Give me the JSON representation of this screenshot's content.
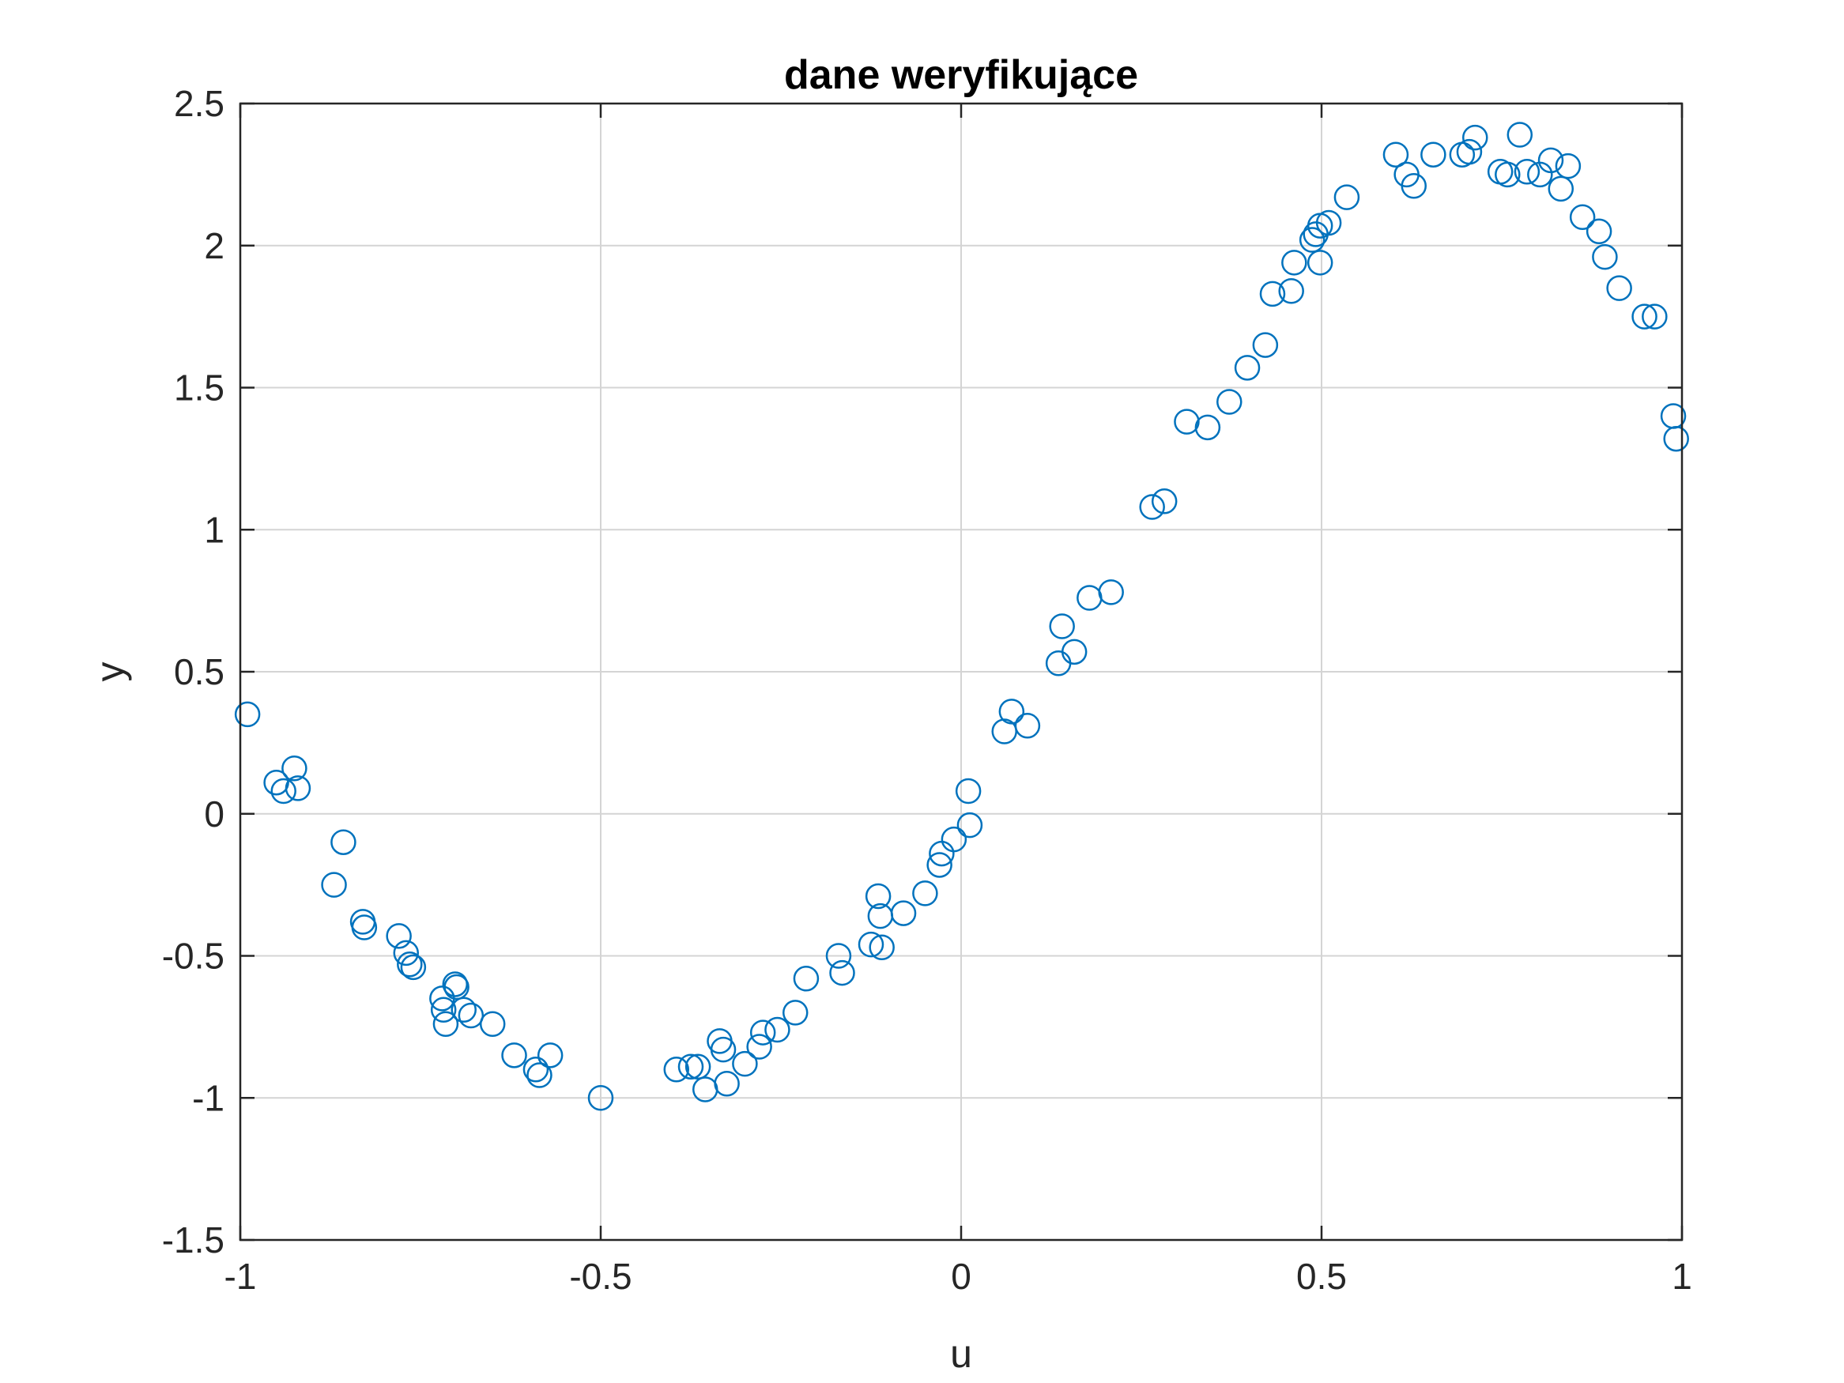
{
  "chart_data": {
    "type": "scatter",
    "title": "dane weryfikujące",
    "xlabel": "u",
    "ylabel": "y",
    "xlim": [
      -1,
      1
    ],
    "ylim": [
      -1.5,
      2.5
    ],
    "xticks": [
      -1,
      -0.5,
      0,
      0.5,
      1
    ],
    "xtick_labels": [
      "-1",
      "-0.5",
      "0",
      "0.5",
      "1"
    ],
    "yticks": [
      -1.5,
      -1,
      -0.5,
      0,
      0.5,
      1,
      1.5,
      2,
      2.5
    ],
    "ytick_labels": [
      "-1.5",
      "-1",
      "-0.5",
      "0",
      "0.5",
      "1",
      "1.5",
      "2",
      "2.5"
    ],
    "grid": true,
    "marker": "circle-open",
    "marker_color": "#0072BD",
    "series": [
      {
        "x": [
          -0.99,
          -0.95,
          -0.94,
          -0.925,
          -0.92,
          -0.87,
          -0.857,
          -0.83,
          -0.828,
          -0.78,
          -0.77,
          -0.765,
          -0.76,
          -0.72,
          -0.718,
          -0.715,
          -0.702,
          -0.7,
          -0.69,
          -0.68,
          -0.65,
          -0.62,
          -0.59,
          -0.585,
          -0.57,
          -0.5,
          -0.395,
          -0.375,
          -0.365,
          -0.355,
          -0.335,
          -0.33,
          -0.325,
          -0.3,
          -0.28,
          -0.275,
          -0.255,
          -0.23,
          -0.215,
          -0.17,
          -0.165,
          -0.125,
          -0.115,
          -0.112,
          -0.11,
          -0.08,
          -0.05,
          -0.03,
          -0.027,
          -0.01,
          0.01,
          0.012,
          0.06,
          0.07,
          0.092,
          0.135,
          0.14,
          0.157,
          0.178,
          0.208,
          0.265,
          0.282,
          0.313,
          0.342,
          0.372,
          0.397,
          0.422,
          0.432,
          0.458,
          0.462,
          0.487,
          0.492,
          0.498,
          0.498,
          0.51,
          0.535,
          0.603,
          0.618,
          0.628,
          0.655,
          0.695,
          0.705,
          0.713,
          0.748,
          0.758,
          0.775,
          0.785,
          0.803,
          0.818,
          0.832,
          0.842,
          0.862,
          0.885,
          0.893,
          0.913,
          0.948,
          0.962,
          0.988,
          0.992
        ],
        "y": [
          0.35,
          0.11,
          0.08,
          0.16,
          0.09,
          -0.25,
          -0.1,
          -0.38,
          -0.4,
          -0.43,
          -0.49,
          -0.53,
          -0.54,
          -0.65,
          -0.69,
          -0.74,
          -0.6,
          -0.61,
          -0.69,
          -0.71,
          -0.74,
          -0.85,
          -0.9,
          -0.92,
          -0.85,
          -1.0,
          -0.9,
          -0.89,
          -0.89,
          -0.97,
          -0.8,
          -0.83,
          -0.95,
          -0.88,
          -0.82,
          -0.77,
          -0.76,
          -0.7,
          -0.58,
          -0.5,
          -0.56,
          -0.46,
          -0.29,
          -0.36,
          -0.47,
          -0.35,
          -0.28,
          -0.18,
          -0.14,
          -0.09,
          0.08,
          -0.04,
          0.29,
          0.36,
          0.31,
          0.53,
          0.66,
          0.57,
          0.76,
          0.78,
          1.08,
          1.1,
          1.38,
          1.36,
          1.45,
          1.57,
          1.65,
          1.83,
          1.84,
          1.94,
          2.02,
          2.04,
          2.07,
          1.94,
          2.08,
          2.17,
          2.32,
          2.25,
          2.21,
          2.32,
          2.32,
          2.33,
          2.38,
          2.26,
          2.25,
          2.39,
          2.26,
          2.25,
          2.3,
          2.2,
          2.28,
          2.1,
          2.05,
          1.96,
          1.85,
          1.75,
          1.75,
          1.4,
          1.32
        ]
      }
    ]
  }
}
